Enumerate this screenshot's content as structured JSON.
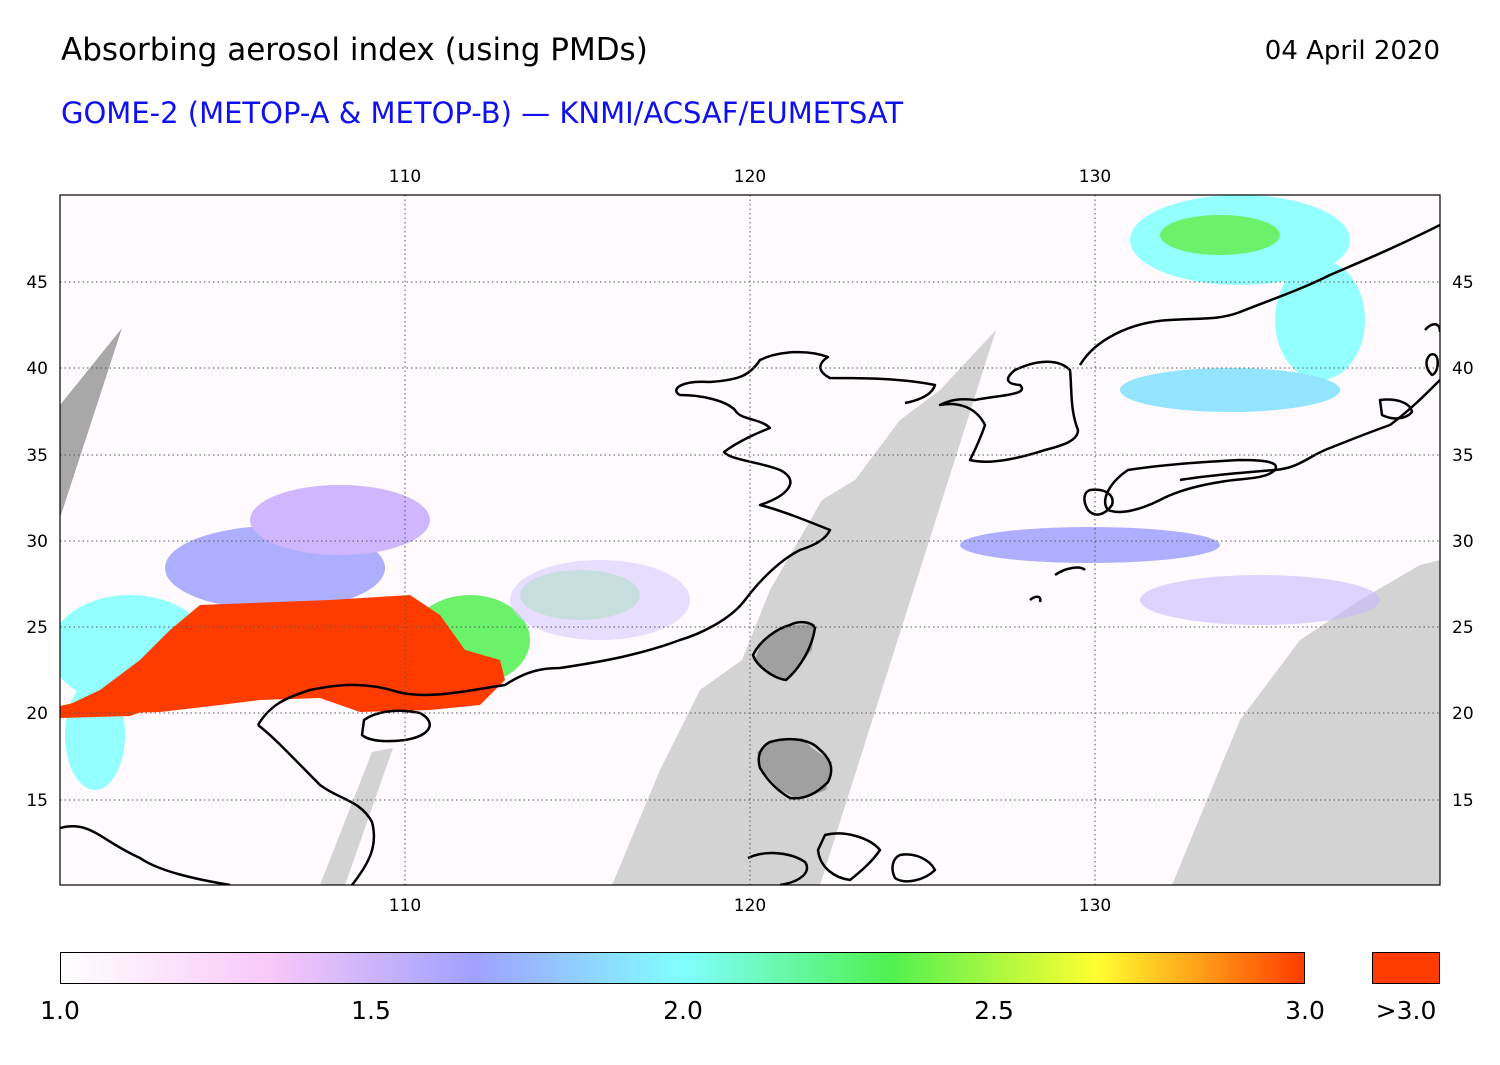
{
  "header": {
    "title": "Absorbing aerosol index (using PMDs)",
    "date": "04 April 2020",
    "subtitle": "GOME-2 (METOP-A & METOP-B) — KNMI/ACSAF/EUMETSAT"
  },
  "map": {
    "lon_range": [
      100,
      140
    ],
    "lat_range": [
      10,
      50
    ],
    "lon_ticks": [
      "110",
      "120",
      "130"
    ],
    "lat_ticks": [
      "45",
      "40",
      "35",
      "30",
      "25",
      "20",
      "15"
    ],
    "colors": {
      "no_data_gap": "#d3d3d3",
      "land_no_data": "#a8a8a8",
      "coastline": "#000000",
      "gridline": "#555555",
      "overflow": "#ff3c00"
    }
  },
  "colorbar": {
    "labels": [
      "1.0",
      "1.5",
      "2.0",
      "2.5",
      "3.0"
    ],
    "overflow_label": ">3.0",
    "range": [
      1.0,
      3.0
    ],
    "stops": [
      "#ffffff",
      "#f8c8f8",
      "#a0a0ff",
      "#80ffff",
      "#50f050",
      "#ffff30",
      "#ff3c00"
    ]
  }
}
